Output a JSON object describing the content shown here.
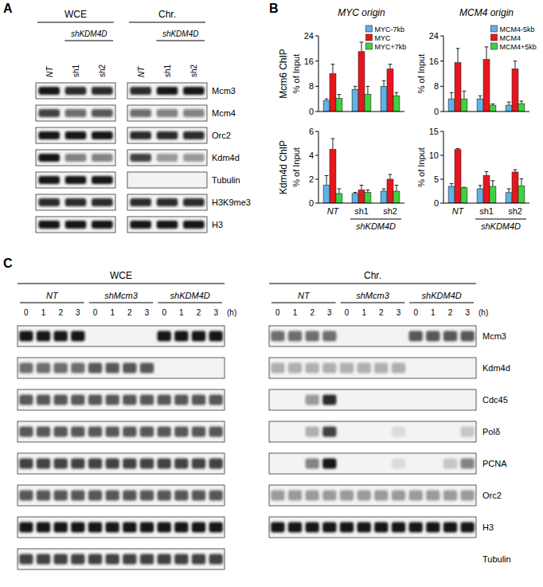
{
  "blot_a": {
    "label": "A",
    "lanes": [
      "NT",
      "sh1",
      "sh2"
    ],
    "group_label": "shKDM4D",
    "rows": [
      "Mcm3",
      "Mcm4",
      "Orc2",
      "Kdm4d",
      "Tubulin",
      "H3K9me3",
      "H3"
    ],
    "blocks": [
      {
        "title": "WCE",
        "signal": [
          [
            1,
            0.9,
            0.9
          ],
          [
            0.8,
            0.6,
            0.7
          ],
          [
            1,
            1,
            1
          ],
          [
            1,
            0.5,
            0.5
          ],
          [
            1,
            1,
            1
          ],
          [
            0.9,
            0.9,
            0.9
          ],
          [
            1,
            1,
            1
          ]
        ]
      },
      {
        "title": "Chr.",
        "signal": [
          [
            0.9,
            1,
            1
          ],
          [
            0.6,
            0.5,
            0.5
          ],
          [
            0.9,
            0.9,
            0.9
          ],
          [
            0.8,
            0.4,
            0.4
          ],
          [
            0,
            0,
            0
          ],
          [
            0.9,
            0.9,
            0.9
          ],
          [
            1,
            1,
            1
          ]
        ]
      }
    ]
  },
  "panel_b_label": "B",
  "chart_data": [
    {
      "type": "bar",
      "title": "MYC origin",
      "row_label": "Mcm6 ChIP",
      "ylabel": "% of Input",
      "categories": [
        "NT",
        "sh1",
        "sh2"
      ],
      "legend": "top-right",
      "series": [
        {
          "name": "MYC-7kb",
          "color": "#5fb3e6",
          "values": [
            3.5,
            7,
            8
          ],
          "errors": [
            0.5,
            1,
            1.8
          ]
        },
        {
          "name": "MYC",
          "color": "#e8151b",
          "values": [
            12,
            19,
            13.5
          ],
          "errors": [
            3,
            3,
            1.5
          ]
        },
        {
          "name": "MYC+7kb",
          "color": "#3fd23f",
          "values": [
            4.2,
            5.5,
            5
          ],
          "errors": [
            1.2,
            2.5,
            1
          ]
        }
      ],
      "ylim": [
        0,
        24
      ],
      "yticks": [
        0,
        8,
        16,
        24
      ]
    },
    {
      "type": "bar",
      "title": "MCM4 origin",
      "ylabel": "% of Input",
      "categories": [
        "NT",
        "sh1",
        "sh2"
      ],
      "legend": "top-right",
      "series": [
        {
          "name": "MCM4-5kb",
          "color": "#5fb3e6",
          "values": [
            4,
            4,
            2
          ],
          "errors": [
            2,
            1,
            1
          ]
        },
        {
          "name": "MCM4",
          "color": "#e8151b",
          "values": [
            15.5,
            16.5,
            13.5
          ],
          "errors": [
            4.5,
            4,
            2.5
          ]
        },
        {
          "name": "MCM4+5kb",
          "color": "#3fd23f",
          "values": [
            4,
            2,
            2.5
          ],
          "errors": [
            2.5,
            0.4,
            0.8
          ]
        }
      ],
      "ylim": [
        0,
        24
      ],
      "yticks": [
        0,
        8,
        16,
        24
      ]
    },
    {
      "type": "bar",
      "row_label": "Kdm4d ChIP",
      "ylabel": "% of Input",
      "categories": [
        "NT",
        "sh1",
        "sh2"
      ],
      "group_label": "shKDM4D",
      "series": [
        {
          "color": "#5fb3e6",
          "values": [
            1.5,
            0.8,
            1
          ],
          "errors": [
            0.8,
            0.1,
            0.2
          ]
        },
        {
          "color": "#e8151b",
          "values": [
            4.5,
            1.1,
            2
          ],
          "errors": [
            0.9,
            0.4,
            0.4
          ]
        },
        {
          "color": "#3fd23f",
          "values": [
            0.8,
            0.9,
            1
          ],
          "errors": [
            0.4,
            0.2,
            0.5
          ]
        }
      ],
      "ylim": [
        0,
        6
      ],
      "yticks": [
        0,
        2,
        4,
        6
      ]
    },
    {
      "type": "bar",
      "ylabel": "% of Input",
      "categories": [
        "NT",
        "sh1",
        "sh2"
      ],
      "group_label": "shKDM4D",
      "series": [
        {
          "color": "#5fb3e6",
          "values": [
            3.5,
            3,
            2.2
          ],
          "errors": [
            0.6,
            0.7,
            0.8
          ]
        },
        {
          "color": "#e8151b",
          "values": [
            11.2,
            5.8,
            6.5
          ],
          "errors": [
            0.2,
            0.8,
            0.5
          ]
        },
        {
          "color": "#3fd23f",
          "values": [
            3.2,
            3.5,
            3.6
          ],
          "errors": [
            0.1,
            1.2,
            1.5
          ]
        }
      ],
      "ylim": [
        0,
        15
      ],
      "yticks": [
        0,
        5,
        10,
        15
      ]
    }
  ],
  "blot_c": {
    "label": "C",
    "groups": [
      "NT",
      "shMcm3",
      "shKDM4D"
    ],
    "timepoints": [
      0,
      1,
      2,
      3
    ],
    "time_unit": "(h)",
    "rows": [
      "Mcm3",
      "Kdm4d",
      "Cdc45",
      "Polδ",
      "PCNA",
      "Orc2",
      "H3",
      "Tubulin"
    ],
    "blocks": [
      {
        "title": "WCE",
        "signal": [
          [
            1,
            1,
            1,
            1,
            0,
            0,
            0,
            0,
            1,
            1,
            1,
            1
          ],
          [
            0.6,
            0.6,
            0.6,
            0.6,
            0.7,
            0.7,
            0.7,
            0.7,
            0,
            0,
            0,
            0
          ],
          [
            0.7,
            0.7,
            0.7,
            0.7,
            0.7,
            0.7,
            0.7,
            0.7,
            0.7,
            0.7,
            0.7,
            0.7
          ],
          [
            0.7,
            0.7,
            0.7,
            0.7,
            0.7,
            0.7,
            0.7,
            0.7,
            0.7,
            0.7,
            0.7,
            0.7
          ],
          [
            0.8,
            0.8,
            0.8,
            0.8,
            0.8,
            0.8,
            0.8,
            0.8,
            0.8,
            0.8,
            0.8,
            0.8
          ],
          [
            0.7,
            0.7,
            0.7,
            0.7,
            0.7,
            0.7,
            0.7,
            0.7,
            0.7,
            0.7,
            0.7,
            0.7
          ],
          [
            1,
            1,
            1,
            1,
            1,
            1,
            1,
            1,
            1,
            1,
            1,
            1
          ],
          [
            0.8,
            0.8,
            0.8,
            0.8,
            0.8,
            0.8,
            0.8,
            0.8,
            0.8,
            0.8,
            0.8,
            0.8
          ]
        ]
      },
      {
        "title": "Chr.",
        "signal": [
          [
            0.6,
            0.6,
            0.6,
            0.6,
            0,
            0,
            0,
            0,
            0.7,
            0.7,
            0.7,
            0.7
          ],
          [
            0.3,
            0.3,
            0.3,
            0.3,
            0.3,
            0.3,
            0.3,
            0.3,
            0,
            0,
            0,
            0
          ],
          [
            0,
            0,
            0.4,
            0.9,
            0,
            0,
            0,
            0,
            0,
            0,
            0,
            0
          ],
          [
            0,
            0,
            0.3,
            0.8,
            0,
            0,
            0,
            0.1,
            0,
            0,
            0,
            0.2
          ],
          [
            0,
            0,
            0.5,
            1,
            0,
            0,
            0,
            0.1,
            0,
            0,
            0.2,
            0.5
          ],
          [
            0.4,
            0.4,
            0.4,
            0.4,
            0.4,
            0.4,
            0.4,
            0.4,
            0.4,
            0.4,
            0.4,
            0.4
          ],
          [
            1,
            1,
            1,
            1,
            1,
            1,
            1,
            1,
            1,
            1,
            1,
            1
          ],
          null
        ]
      }
    ]
  }
}
